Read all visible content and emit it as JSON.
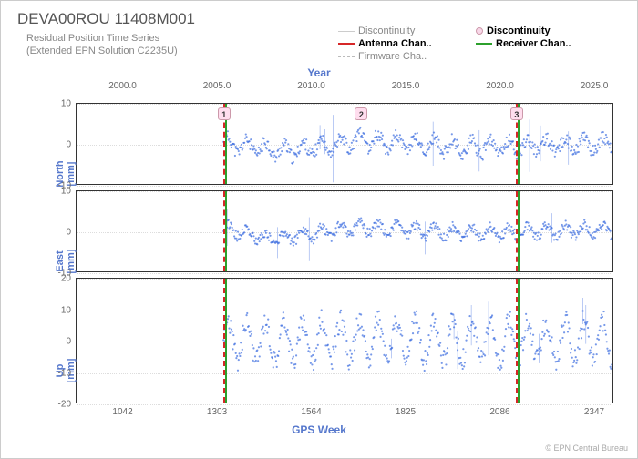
{
  "title": "DEVA00ROU 11408M001",
  "subtitle_line1": "Residual Position Time Series",
  "subtitle_line2": "(Extended EPN Solution C2235U)",
  "footer": "© EPN Central Bureau",
  "axis_top_label": "Year",
  "axis_bot_label": "GPS Week",
  "legend": {
    "disc_gray": "Discontinuity",
    "disc_pink": "Discontinuity",
    "antenna": "Antenna Chan..",
    "receiver": "Receiver Chan..",
    "firmware": "Firmware Cha.."
  },
  "colors": {
    "scatter": "#3d6de0",
    "accent_text": "#5577cc",
    "grid": "#dddddd",
    "antenna_line": "#d62728",
    "receiver_line": "#2ca02c",
    "firmware_line": "#bbbbbb",
    "disc_line": "#cccccc",
    "marker_bg": "#f8d7e8",
    "border": "#333333"
  },
  "x_domain": {
    "week_min": 912,
    "week_max": 2400
  },
  "top_ticks": [
    {
      "label": "2000.0",
      "week": 1042
    },
    {
      "label": "2005.0",
      "week": 1303
    },
    {
      "label": "2010.0",
      "week": 1564
    },
    {
      "label": "2015.0",
      "week": 1825
    },
    {
      "label": "2020.0",
      "week": 2086
    },
    {
      "label": "2025.0",
      "week": 2347
    }
  ],
  "bot_ticks": [
    {
      "label": "1042"
    },
    {
      "label": "1303"
    },
    {
      "label": "1564"
    },
    {
      "label": "1825"
    },
    {
      "label": "2086"
    },
    {
      "label": "2347"
    }
  ],
  "events": [
    {
      "week": 1320,
      "lines": [
        "antenna",
        "receiver"
      ],
      "marker": "1"
    },
    {
      "week": 1700,
      "lines": [],
      "marker": "2"
    },
    {
      "week": 2130,
      "lines": [
        "antenna",
        "receiver"
      ],
      "marker": "3"
    }
  ],
  "panels": [
    {
      "id": "north",
      "label": "North",
      "unit": "[mm]",
      "ymin": -10,
      "ymax": 10,
      "yticks": [
        -10,
        0,
        10
      ],
      "seed": 11,
      "noise_amp": 1.6,
      "wave_amp": 1.8,
      "wave_period": 52,
      "trend": [
        [
          1320,
          0
        ],
        [
          1500,
          -2
        ],
        [
          1700,
          1
        ],
        [
          2000,
          -1
        ],
        [
          2400,
          0
        ]
      ],
      "data_start": 1320,
      "data_end": 2400
    },
    {
      "id": "east",
      "label": "East",
      "unit": "[mm]",
      "ymin": -10,
      "ymax": 10,
      "yticks": [
        -10,
        0,
        10
      ],
      "seed": 22,
      "noise_amp": 1.2,
      "wave_amp": 1.4,
      "wave_period": 52,
      "trend": [
        [
          1320,
          1
        ],
        [
          1450,
          -2
        ],
        [
          1700,
          1
        ],
        [
          2000,
          -0.5
        ],
        [
          2400,
          0.5
        ]
      ],
      "data_start": 1320,
      "data_end": 2400
    },
    {
      "id": "up",
      "label": "Up",
      "unit": "[mm]",
      "ymin": -20,
      "ymax": 20,
      "yticks": [
        -20,
        -10,
        0,
        10,
        20
      ],
      "seed": 33,
      "noise_amp": 3.5,
      "wave_amp": 6.5,
      "wave_period": 52,
      "trend": [
        [
          1320,
          0
        ],
        [
          2400,
          0
        ]
      ],
      "data_start": 1320,
      "data_end": 2400
    }
  ]
}
